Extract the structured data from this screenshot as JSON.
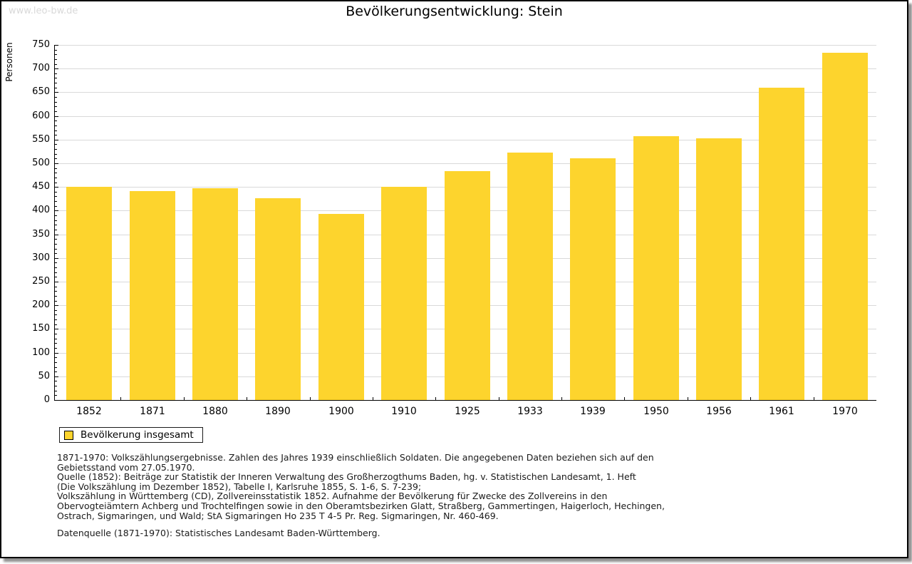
{
  "page": {
    "watermark": "www.leo-bw.de",
    "title": "Bevölkerungsentwicklung: Stein"
  },
  "chart_data": {
    "type": "bar",
    "title": "Bevölkerungsentwicklung: Stein",
    "xlabel": "",
    "ylabel": "Personen",
    "categories": [
      "1852",
      "1871",
      "1880",
      "1890",
      "1900",
      "1910",
      "1925",
      "1933",
      "1939",
      "1950",
      "1956",
      "1961",
      "1970"
    ],
    "values": [
      450,
      442,
      447,
      426,
      393,
      450,
      484,
      523,
      511,
      557,
      553,
      660,
      733
    ],
    "ylim": [
      0,
      750
    ],
    "ytick_major": 50,
    "ytick_minor": 10,
    "grid": true,
    "bar_color": "#FDD42D",
    "gridline_color": "#d9d9d9",
    "legend": {
      "position": "bottom-left",
      "entries": [
        "Bevölkerung insgesamt"
      ]
    }
  },
  "footnotes": {
    "lines": [
      "1871-1970: Volkszählungsergebnisse. Zahlen des Jahres 1939 einschließlich Soldaten. Die angegebenen Daten beziehen sich auf den",
      "Gebietsstand vom 27.05.1970.",
      "Quelle (1852): Beiträge zur Statistik der Inneren Verwaltung des Großherzogthums Baden, hg. v. Statistischen Landesamt, 1. Heft",
      "(Die Volkszählung im Dezember 1852), Tabelle I, Karlsruhe 1855, S. 1-6, S. 7-239;",
      "Volkszählung in Württemberg (CD), Zollvereinsstatistik 1852. Aufnahme der Bevölkerung für Zwecke des Zollvereins in den",
      "Obervogteiämtern Achberg und Trochtelfingen sowie in den Oberamtsbezirken Glatt, Straßberg, Gammertingen, Haigerloch, Hechingen,",
      "Ostrach, Sigmaringen, und Wald; StA Sigmaringen Ho 235 T 4-5 Pr. Reg. Sigmaringen, Nr. 460-469."
    ],
    "datasource": "Datenquelle (1871-1970): Statistisches Landesamt Baden-Württemberg."
  }
}
